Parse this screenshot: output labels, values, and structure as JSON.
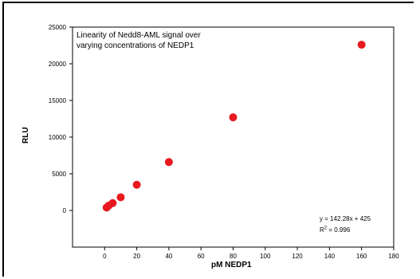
{
  "chart_data": {
    "type": "scatter",
    "title_lines": [
      "Linearity of Nedd8-AML signal over",
      "varying concentrations of NEDP1"
    ],
    "xlabel": "pM NEDP1",
    "ylabel": "RLU",
    "xlim": [
      -20,
      180
    ],
    "ylim": [
      -5000,
      25000
    ],
    "x_ticks": [
      0,
      20,
      40,
      60,
      80,
      100,
      120,
      140,
      160,
      180
    ],
    "y_ticks": [
      0,
      5000,
      10000,
      15000,
      20000,
      25000
    ],
    "grid": false,
    "legend": "none",
    "series": [
      {
        "color": "#e8191f",
        "points": [
          {
            "x": 1.25,
            "y": 400
          },
          {
            "x": 2.5,
            "y": 650
          },
          {
            "x": 5,
            "y": 1000
          },
          {
            "x": 10,
            "y": 1800
          },
          {
            "x": 20,
            "y": 3500
          },
          {
            "x": 40,
            "y": 6600
          },
          {
            "x": 80,
            "y": 12700
          },
          {
            "x": 160,
            "y": 22600
          }
        ]
      }
    ],
    "fit_equation": "y = 142.28x + 425",
    "r_squared_label": "R",
    "r_squared_sup": "2",
    "r_squared_value": " = 0.996"
  }
}
